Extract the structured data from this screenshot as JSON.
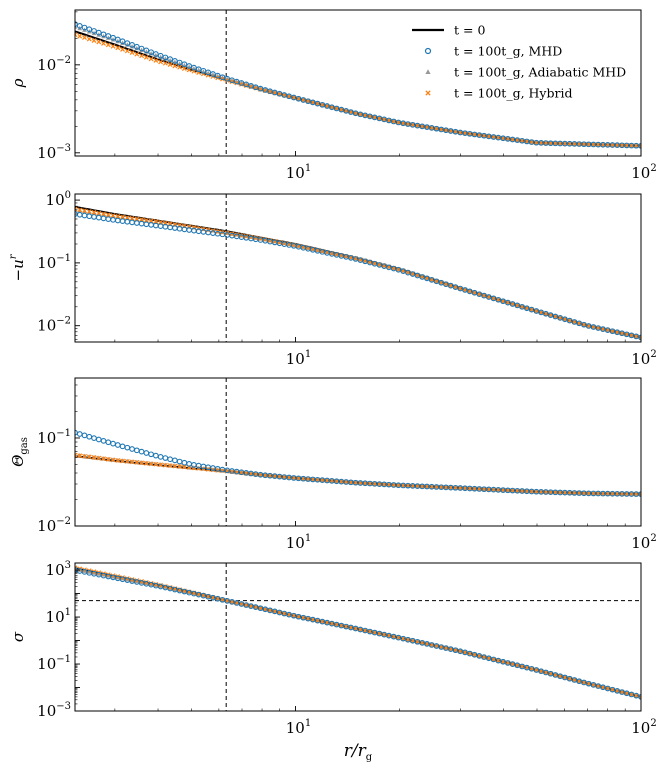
{
  "chart_data": {
    "type": "line",
    "x_range": [
      2.3,
      100
    ],
    "xscale": "log",
    "xlabel": "r/r_g",
    "xlabel_main": "r/r",
    "xlabel_sub": "g",
    "x_tick_labels": [
      {
        "base": "10",
        "exp": "1",
        "value": 10
      },
      {
        "base": "10",
        "exp": "2",
        "value": 100
      }
    ],
    "vertical_line_x": 6.3,
    "legend": {
      "placement": "top-right",
      "entries": [
        {
          "key": "t0",
          "marker": "line",
          "color": "#000000",
          "label": "t = 0"
        },
        {
          "key": "mhd",
          "marker": "open-circle",
          "color": "#1f77b4",
          "label": "t = 100t_g, MHD"
        },
        {
          "key": "adiabatic",
          "marker": "triangle",
          "color": "#999999",
          "label": "t = 100t_g, Adiabatic MHD"
        },
        {
          "key": "hybrid",
          "marker": "x",
          "color": "#ff7f0e",
          "label": "t = 100t_g, Hybrid"
        }
      ]
    },
    "panels": [
      {
        "id": "rho",
        "ylabel": "ρ",
        "ylabel_sub": "",
        "yscale": "log",
        "ylim": [
          0.00092,
          0.042
        ],
        "y_ticks": [
          {
            "base": "10",
            "exp": "−2",
            "value": 0.01
          },
          {
            "base": "10",
            "exp": "−3",
            "value": 0.001
          }
        ],
        "series": {
          "t0": {
            "x": [
              2.3,
              3,
              4,
              5,
              6.3,
              8,
              10,
              15,
              20,
              30,
              50,
              70,
              100
            ],
            "y": [
              0.024,
              0.017,
              0.0115,
              0.0088,
              0.0068,
              0.0052,
              0.0042,
              0.0028,
              0.0022,
              0.0017,
              0.0013,
              0.00125,
              0.0012
            ]
          },
          "mhd": {
            "x": [
              2.3,
              3,
              4,
              5,
              6.3,
              8,
              10,
              15,
              20,
              30,
              50,
              70,
              100
            ],
            "y": [
              0.029,
              0.02,
              0.013,
              0.0095,
              0.007,
              0.0053,
              0.0042,
              0.0028,
              0.0022,
              0.0017,
              0.0013,
              0.00125,
              0.0012
            ]
          },
          "adiabatic": {
            "x": [
              2.3,
              3,
              4,
              5,
              6.3,
              8,
              10,
              15,
              20,
              30,
              50,
              70,
              100
            ],
            "y": [
              0.027,
              0.019,
              0.0125,
              0.0092,
              0.0069,
              0.0053,
              0.0042,
              0.0028,
              0.0022,
              0.0017,
              0.0013,
              0.00125,
              0.0012
            ]
          },
          "hybrid": {
            "x": [
              2.3,
              3,
              4,
              5,
              6.3,
              8,
              10,
              15,
              20,
              30,
              50,
              70,
              100
            ],
            "y": [
              0.022,
              0.016,
              0.011,
              0.0086,
              0.0067,
              0.0052,
              0.0042,
              0.0028,
              0.0022,
              0.0017,
              0.0013,
              0.00125,
              0.0012
            ]
          }
        }
      },
      {
        "id": "ur",
        "ylabel": "−u",
        "ylabel_sup": "r",
        "yscale": "log",
        "ylim": [
          0.0055,
          1.25
        ],
        "y_ticks": [
          {
            "base": "10",
            "exp": "0",
            "value": 1
          },
          {
            "base": "10",
            "exp": "−1",
            "value": 0.1
          },
          {
            "base": "10",
            "exp": "−2",
            "value": 0.01
          }
        ],
        "series": {
          "t0": {
            "x": [
              2.3,
              3,
              4,
              5,
              6.3,
              8,
              10,
              15,
              20,
              30,
              50,
              70,
              100
            ],
            "y": [
              0.78,
              0.6,
              0.47,
              0.39,
              0.32,
              0.25,
              0.2,
              0.12,
              0.08,
              0.04,
              0.017,
              0.01,
              0.0065
            ]
          },
          "mhd": {
            "x": [
              2.3,
              3,
              4,
              5,
              6.3,
              8,
              10,
              15,
              20,
              30,
              50,
              70,
              100
            ],
            "y": [
              0.6,
              0.48,
              0.39,
              0.33,
              0.28,
              0.23,
              0.185,
              0.115,
              0.077,
              0.039,
              0.017,
              0.01,
              0.0065
            ]
          },
          "adiabatic": {
            "x": [
              2.3,
              3,
              4,
              5,
              6.3,
              8,
              10,
              15,
              20,
              30,
              50,
              70,
              100
            ],
            "y": [
              0.7,
              0.55,
              0.44,
              0.37,
              0.3,
              0.24,
              0.19,
              0.117,
              0.078,
              0.039,
              0.017,
              0.01,
              0.0065
            ]
          },
          "hybrid": {
            "x": [
              2.3,
              3,
              4,
              5,
              6.3,
              8,
              10,
              15,
              20,
              30,
              50,
              70,
              100
            ],
            "y": [
              0.72,
              0.56,
              0.45,
              0.37,
              0.3,
              0.24,
              0.19,
              0.117,
              0.078,
              0.039,
              0.017,
              0.01,
              0.0065
            ]
          }
        }
      },
      {
        "id": "theta",
        "ylabel": "Θ",
        "ylabel_sub": "gas",
        "yscale": "log",
        "ylim": [
          0.01,
          0.48
        ],
        "y_ticks": [
          {
            "base": "10",
            "exp": "−1",
            "value": 0.1
          },
          {
            "base": "10",
            "exp": "−2",
            "value": 0.01
          }
        ],
        "series": {
          "t0": {
            "x": [
              2.3,
              3,
              4,
              5,
              6.3,
              8,
              10,
              15,
              20,
              30,
              50,
              70,
              100
            ],
            "y": [
              0.062,
              0.055,
              0.049,
              0.045,
              0.042,
              0.038,
              0.035,
              0.031,
              0.029,
              0.027,
              0.0245,
              0.0235,
              0.023
            ]
          },
          "mhd": {
            "x": [
              2.3,
              3,
              4,
              5,
              6.3,
              8,
              10,
              15,
              20,
              30,
              50,
              70,
              100
            ],
            "y": [
              0.115,
              0.085,
              0.062,
              0.05,
              0.043,
              0.038,
              0.035,
              0.031,
              0.029,
              0.027,
              0.0245,
              0.0235,
              0.023
            ]
          },
          "adiabatic": {
            "x": [
              2.3,
              3,
              4,
              5,
              6.3,
              8,
              10,
              15,
              20,
              30,
              50,
              70,
              100
            ],
            "y": [
              0.064,
              0.056,
              0.05,
              0.046,
              0.042,
              0.038,
              0.035,
              0.031,
              0.029,
              0.027,
              0.0245,
              0.0235,
              0.023
            ]
          },
          "hybrid": {
            "x": [
              2.3,
              3,
              4,
              5,
              6.3,
              8,
              10,
              15,
              20,
              30,
              50,
              70,
              100
            ],
            "y": [
              0.064,
              0.056,
              0.05,
              0.046,
              0.042,
              0.038,
              0.035,
              0.031,
              0.029,
              0.027,
              0.0245,
              0.0235,
              0.023
            ]
          }
        }
      },
      {
        "id": "sigma",
        "ylabel": "σ",
        "ylabel_sub": "",
        "yscale": "log",
        "ylim": [
          0.001,
          2000
        ],
        "horizontal_line_y": 50,
        "y_ticks": [
          {
            "base": "10",
            "exp": "3",
            "value": 1000
          },
          {
            "base": "10",
            "exp": "1",
            "value": 10
          },
          {
            "base": "10",
            "exp": "−1",
            "value": 0.1
          },
          {
            "base": "10",
            "exp": "−3",
            "value": 0.001
          }
        ],
        "series": {
          "t0": {
            "x": [
              2.3,
              3,
              4,
              5,
              6.3,
              8,
              10,
              15,
              20,
              30,
              50,
              70,
              100
            ],
            "y": [
              1200,
              540,
              230,
              110,
              50,
              23,
              11,
              3.2,
              1.3,
              0.35,
              0.055,
              0.015,
              0.004
            ]
          },
          "mhd": {
            "x": [
              2.3,
              3,
              4,
              5,
              6.3,
              8,
              10,
              15,
              20,
              30,
              50,
              70,
              100
            ],
            "y": [
              1000,
              470,
              210,
              105,
              50,
              23,
              11,
              3.2,
              1.3,
              0.35,
              0.055,
              0.015,
              0.004
            ]
          },
          "adiabatic": {
            "x": [
              2.3,
              3,
              4,
              5,
              6.3,
              8,
              10,
              15,
              20,
              30,
              50,
              70,
              100
            ],
            "y": [
              1100,
              500,
              220,
              108,
              50,
              23,
              11,
              3.2,
              1.3,
              0.35,
              0.055,
              0.015,
              0.004
            ]
          },
          "hybrid": {
            "x": [
              2.3,
              3,
              4,
              5,
              6.3,
              8,
              10,
              15,
              20,
              30,
              50,
              70,
              100
            ],
            "y": [
              1250,
              560,
              235,
              112,
              50,
              23,
              11,
              3.2,
              1.3,
              0.35,
              0.055,
              0.015,
              0.004
            ]
          }
        }
      }
    ]
  }
}
